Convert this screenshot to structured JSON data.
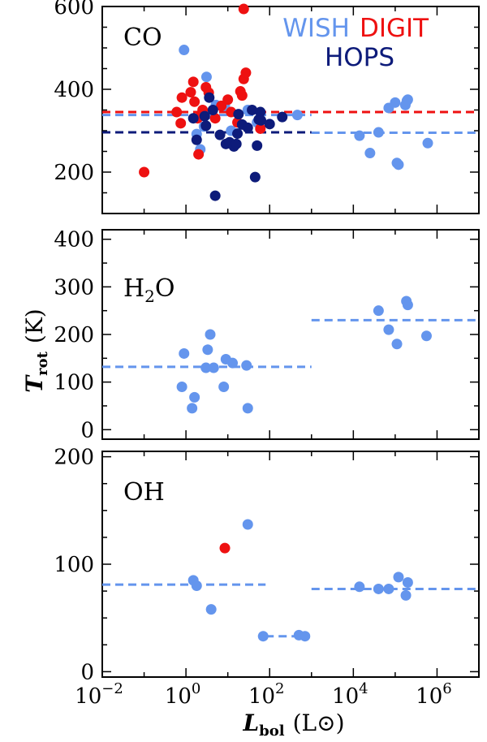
{
  "chart_data": [
    {
      "type": "scatter",
      "panel_label": "CO",
      "xscale": "log",
      "xlim": [
        0.01,
        10000000
      ],
      "ylim": [
        100,
        600
      ],
      "ytick_labels": [
        "200",
        "400",
        "600"
      ],
      "yticks": [
        200,
        400,
        600
      ],
      "legend": [
        {
          "name": "WISH",
          "color": "#6495ed"
        },
        {
          "name": "DIGIT",
          "color": "#ee1111"
        },
        {
          "name": "HOPS",
          "color": "#0d1b7a"
        }
      ],
      "series": [
        {
          "name": "WISH",
          "color": "#6495ed",
          "points": [
            [
              0.9,
              495
            ],
            [
              3.1,
              430
            ],
            [
              1.8,
              292
            ],
            [
              2.2,
              255
            ],
            [
              3.6,
              340
            ],
            [
              2.7,
              310
            ],
            [
              5.2,
              362
            ],
            [
              8.5,
              360
            ],
            [
              12,
              300
            ],
            [
              30,
              350
            ],
            [
              50,
              320
            ],
            [
              460,
              338
            ],
            [
              14000,
              288
            ],
            [
              25000,
              246
            ],
            [
              40000,
              296
            ],
            [
              70000,
              355
            ],
            [
              100000,
              368
            ],
            [
              110000,
              222
            ],
            [
              120000,
              218
            ],
            [
              175000,
              362
            ],
            [
              190000,
              372
            ],
            [
              200000,
              375
            ],
            [
              600000,
              270
            ]
          ]
        },
        {
          "name": "DIGIT",
          "color": "#ee1111",
          "points": [
            [
              0.1,
              200
            ],
            [
              0.6,
              345
            ],
            [
              0.8,
              380
            ],
            [
              0.75,
              318
            ],
            [
              1.3,
              393
            ],
            [
              1.5,
              418
            ],
            [
              1.6,
              370
            ],
            [
              1.9,
              330
            ],
            [
              2.0,
              243
            ],
            [
              2.5,
              350
            ],
            [
              3.0,
              405
            ],
            [
              3.5,
              392
            ],
            [
              5,
              330
            ],
            [
              7,
              360
            ],
            [
              10,
              375
            ],
            [
              12,
              345
            ],
            [
              17,
              320
            ],
            [
              20,
              395
            ],
            [
              22,
              385
            ],
            [
              24,
              425
            ],
            [
              27,
              440
            ],
            [
              24,
              594
            ],
            [
              60,
              305
            ]
          ]
        },
        {
          "name": "HOPS",
          "color": "#0d1b7a",
          "points": [
            [
              1.5,
              330
            ],
            [
              1.8,
              278
            ],
            [
              2.8,
              335
            ],
            [
              3.0,
              312
            ],
            [
              3.6,
              380
            ],
            [
              4.4,
              350
            ],
            [
              5,
              143
            ],
            [
              6.5,
              290
            ],
            [
              9,
              268
            ],
            [
              11,
              272
            ],
            [
              14,
              262
            ],
            [
              16,
              268
            ],
            [
              17,
              293
            ],
            [
              18,
              340
            ],
            [
              22,
              315
            ],
            [
              30,
              307
            ],
            [
              38,
              350
            ],
            [
              45,
              188
            ],
            [
              50,
              264
            ],
            [
              55,
              327
            ],
            [
              60,
              345
            ],
            [
              62,
              325
            ],
            [
              100,
              316
            ],
            [
              200,
              333
            ]
          ]
        }
      ],
      "mean_lines": [
        {
          "color": "#ee1111",
          "y": 345,
          "x": [
            0.01,
            10000000
          ]
        },
        {
          "color": "#6495ed",
          "y": 338,
          "x": [
            0.01,
            1000
          ]
        },
        {
          "color": "#6495ed",
          "y": 295,
          "x": [
            1000,
            10000000
          ]
        },
        {
          "color": "#0d1b7a",
          "y": 296,
          "x": [
            0.01,
            1000
          ]
        }
      ]
    },
    {
      "type": "scatter",
      "panel_label_main": "H",
      "panel_label_sub": "2",
      "panel_label_tail": "O",
      "xscale": "log",
      "xlim": [
        0.01,
        10000000
      ],
      "ylim": [
        -20,
        420
      ],
      "ytick_labels": [
        "0",
        "100",
        "200",
        "300",
        "400"
      ],
      "yticks": [
        0,
        100,
        200,
        300,
        400
      ],
      "series": [
        {
          "name": "WISH",
          "color": "#6495ed",
          "points": [
            [
              0.8,
              90
            ],
            [
              0.9,
              160
            ],
            [
              1.4,
              45
            ],
            [
              1.6,
              68
            ],
            [
              3.0,
              130
            ],
            [
              3.3,
              168
            ],
            [
              3.8,
              200
            ],
            [
              4.6,
              130
            ],
            [
              8,
              90
            ],
            [
              9,
              148
            ],
            [
              13,
              140
            ],
            [
              28,
              135
            ],
            [
              30,
              45
            ],
            [
              40000,
              250
            ],
            [
              70000,
              210
            ],
            [
              110000,
              180
            ],
            [
              185000,
              270
            ],
            [
              200000,
              262
            ],
            [
              560000,
              197
            ]
          ]
        }
      ],
      "mean_lines": [
        {
          "color": "#6495ed",
          "y": 132,
          "x": [
            0.01,
            1000
          ]
        },
        {
          "color": "#6495ed",
          "y": 230,
          "x": [
            1000,
            10000000
          ]
        }
      ]
    },
    {
      "type": "scatter",
      "panel_label": "OH",
      "xscale": "log",
      "xlim": [
        0.01,
        10000000
      ],
      "ylim": [
        -5,
        205
      ],
      "ytick_labels": [
        "0",
        "100",
        "200"
      ],
      "yticks": [
        0,
        100,
        200
      ],
      "series": [
        {
          "name": "WISH",
          "color": "#6495ed",
          "points": [
            [
              1.5,
              85
            ],
            [
              1.8,
              80
            ],
            [
              4,
              58
            ],
            [
              30,
              137
            ],
            [
              70,
              33
            ],
            [
              500,
              34
            ],
            [
              700,
              33
            ],
            [
              14000,
              79
            ],
            [
              40000,
              77
            ],
            [
              70000,
              77
            ],
            [
              120000,
              88
            ],
            [
              180000,
              71
            ],
            [
              200000,
              83
            ]
          ]
        },
        {
          "name": "DIGIT",
          "color": "#ee1111",
          "points": [
            [
              8.5,
              115
            ]
          ]
        }
      ],
      "mean_lines": [
        {
          "color": "#6495ed",
          "y": 81,
          "x": [
            0.01,
            80
          ]
        },
        {
          "color": "#6495ed",
          "y": 33,
          "x": [
            80,
            800
          ]
        },
        {
          "color": "#6495ed",
          "y": 77,
          "x": [
            1000,
            10000000
          ]
        }
      ]
    }
  ],
  "xaxis": {
    "label_main": "L",
    "label_sub": "bol",
    "label_unit": "(L⊙)",
    "tick_base": "10",
    "tick_exponents": [
      "−2",
      "0",
      "2",
      "4",
      "6"
    ],
    "tick_values": [
      0.01,
      1,
      100,
      10000,
      1000000
    ]
  },
  "yaxis": {
    "label_main": "T",
    "label_sub": "rot",
    "label_unit": "(K)"
  }
}
